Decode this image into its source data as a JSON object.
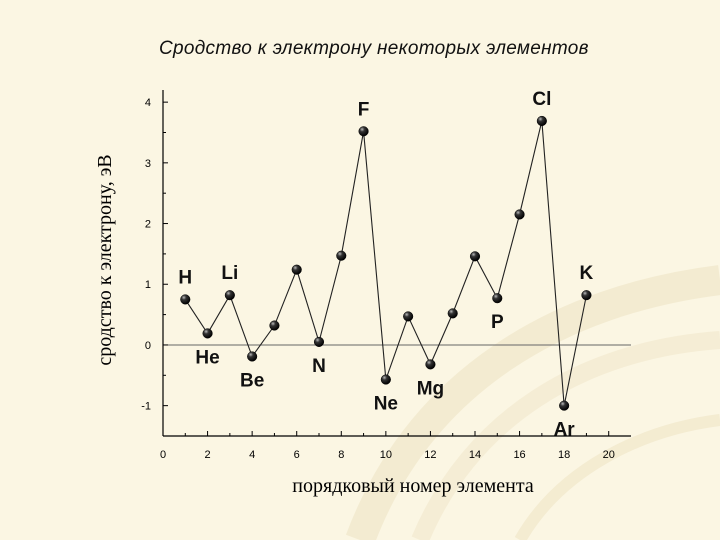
{
  "title": "Сродство к электрону некоторых элементов",
  "chart_data": {
    "type": "line",
    "title": "Сродство к электрону некоторых элементов",
    "xlabel": "порядковый номер элемента",
    "ylabel": "сродство к электрону, эВ",
    "xlim": [
      0,
      21
    ],
    "ylim": [
      -1.5,
      4.2
    ],
    "x_ticks": [
      0,
      2,
      4,
      6,
      8,
      10,
      12,
      14,
      16,
      18,
      20
    ],
    "y_ticks": [
      -1,
      0,
      1,
      2,
      3,
      4
    ],
    "zero_line": true,
    "grid": false,
    "legend": "none",
    "series": [
      {
        "x": [
          1,
          2,
          3,
          4,
          5,
          6,
          7,
          8,
          9,
          10,
          11,
          12,
          13,
          14,
          15,
          16,
          17,
          18,
          19
        ],
        "y": [
          0.75,
          0.19,
          0.82,
          -0.19,
          0.32,
          1.24,
          0.05,
          1.47,
          3.52,
          -0.57,
          0.47,
          -0.32,
          0.52,
          1.46,
          0.77,
          2.15,
          3.69,
          -1.0,
          0.82
        ]
      }
    ],
    "annotations": [
      {
        "text": "H",
        "x": 1,
        "y": 0.75,
        "pos": "above"
      },
      {
        "text": "He",
        "x": 2,
        "y": 0.19,
        "pos": "below"
      },
      {
        "text": "Li",
        "x": 3,
        "y": 0.82,
        "pos": "above"
      },
      {
        "text": "Be",
        "x": 4,
        "y": -0.19,
        "pos": "below"
      },
      {
        "text": "N",
        "x": 7,
        "y": 0.05,
        "pos": "below"
      },
      {
        "text": "F",
        "x": 9,
        "y": 3.52,
        "pos": "above"
      },
      {
        "text": "Ne",
        "x": 10,
        "y": -0.57,
        "pos": "below"
      },
      {
        "text": "Mg",
        "x": 12,
        "y": -0.32,
        "pos": "below"
      },
      {
        "text": "P",
        "x": 15,
        "y": 0.77,
        "pos": "below"
      },
      {
        "text": "Cl",
        "x": 17,
        "y": 3.69,
        "pos": "above"
      },
      {
        "text": "Ar",
        "x": 18,
        "y": -1.0,
        "pos": "below"
      },
      {
        "text": "K",
        "x": 19,
        "y": 0.82,
        "pos": "above"
      }
    ]
  }
}
